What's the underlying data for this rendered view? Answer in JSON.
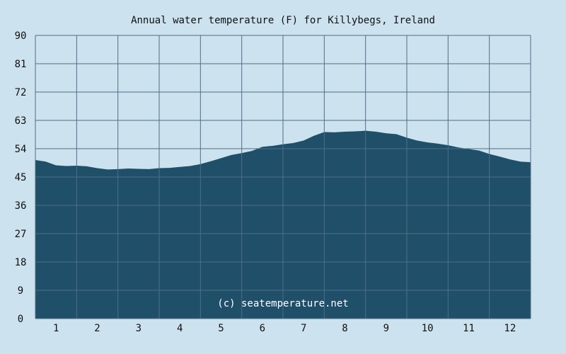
{
  "chart_data": {
    "type": "area",
    "title": "Annual water temperature (F) for Killybegs, Ireland",
    "xlabel": "",
    "ylabel": "",
    "ylim": [
      0,
      90
    ],
    "xlim": [
      0.5,
      12.5
    ],
    "y_ticks": [
      "0",
      "9",
      "18",
      "27",
      "36",
      "45",
      "54",
      "63",
      "72",
      "81",
      "90"
    ],
    "x_ticks": [
      "1",
      "2",
      "3",
      "4",
      "5",
      "6",
      "7",
      "8",
      "9",
      "10",
      "11",
      "12"
    ],
    "grid": true,
    "watermark": "(c) seatemperature.net",
    "colors": {
      "background": "#cce2ee",
      "area": "#1f4f69",
      "grid": "#4f6f86"
    },
    "series": [
      {
        "x": [
          0.5,
          0.75,
          1.0,
          1.25,
          1.5,
          1.75,
          2.0,
          2.25,
          2.5,
          2.75,
          3.0,
          3.25,
          3.5,
          3.75,
          4.0,
          4.25,
          4.5,
          4.75,
          5.0,
          5.25,
          5.5,
          5.75,
          6.0,
          6.25,
          6.5,
          6.75,
          7.0,
          7.25,
          7.5,
          7.75,
          8.0,
          8.25,
          8.5,
          8.75,
          9.0,
          9.25,
          9.5,
          9.75,
          10.0,
          10.25,
          10.5,
          10.75,
          11.0,
          11.25,
          11.5,
          11.75,
          12.0,
          12.25,
          12.5
        ],
        "values": [
          50.4,
          49.9,
          48.7,
          48.5,
          48.6,
          48.4,
          47.8,
          47.4,
          47.5,
          47.7,
          47.6,
          47.5,
          47.8,
          47.9,
          48.2,
          48.5,
          49.1,
          50.0,
          51.0,
          52.0,
          52.6,
          53.3,
          54.6,
          54.9,
          55.4,
          55.8,
          56.6,
          58.1,
          59.3,
          59.2,
          59.4,
          59.5,
          59.7,
          59.4,
          58.9,
          58.6,
          57.5,
          56.6,
          56.0,
          55.6,
          55.1,
          54.4,
          53.9,
          53.4,
          52.3,
          51.5,
          50.6,
          49.9,
          49.7
        ]
      }
    ]
  }
}
